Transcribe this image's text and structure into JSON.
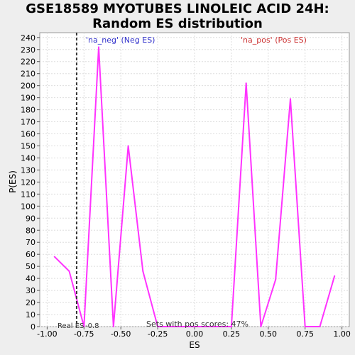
{
  "chart_data": {
    "type": "line",
    "title_line1": "GSE18589 MYOTUBES LINOLEIC ACID 24H:",
    "title_line2": "Random ES distribution",
    "xlabel": "ES",
    "ylabel": "P(ES)",
    "xlim": [
      -1.05,
      1.05
    ],
    "ylim": [
      0,
      244
    ],
    "x_ticks": [
      "-1.00",
      "-0.75",
      "-0.50",
      "-0.25",
      "0.00",
      "0.25",
      "0.50",
      "0.75",
      "1.00"
    ],
    "x_tick_values": [
      -1.0,
      -0.75,
      -0.5,
      -0.25,
      0.0,
      0.25,
      0.5,
      0.75,
      1.0
    ],
    "y_ticks": [
      0,
      10,
      20,
      30,
      40,
      50,
      60,
      70,
      80,
      90,
      100,
      110,
      120,
      130,
      140,
      150,
      160,
      170,
      180,
      190,
      200,
      210,
      220,
      230,
      240
    ],
    "grid": true,
    "line_color": "#ff33ff",
    "series": [
      {
        "x": [
          -0.95,
          -0.85,
          -0.75,
          -0.65,
          -0.55,
          -0.45,
          -0.35,
          -0.25,
          -0.15,
          -0.05,
          0.05,
          0.15,
          0.25,
          0.35,
          0.45,
          0.55,
          0.65,
          0.75,
          0.85,
          0.95
        ],
        "y": [
          58,
          46,
          0,
          232,
          0,
          150,
          46,
          0,
          0,
          0,
          0,
          0,
          0,
          202,
          0,
          39,
          189,
          0,
          0,
          42
        ]
      }
    ],
    "real_es": -0.8,
    "real_es_label": "Real ES",
    "real_es_value_label": "-0.8",
    "legend_neg": "'na_neg' (Neg ES)",
    "legend_neg_color": "#3333cc",
    "legend_pos": "'na_pos' (Pos ES)",
    "legend_pos_color": "#cc3333",
    "footer": "Sets with pos scores: 47%"
  }
}
